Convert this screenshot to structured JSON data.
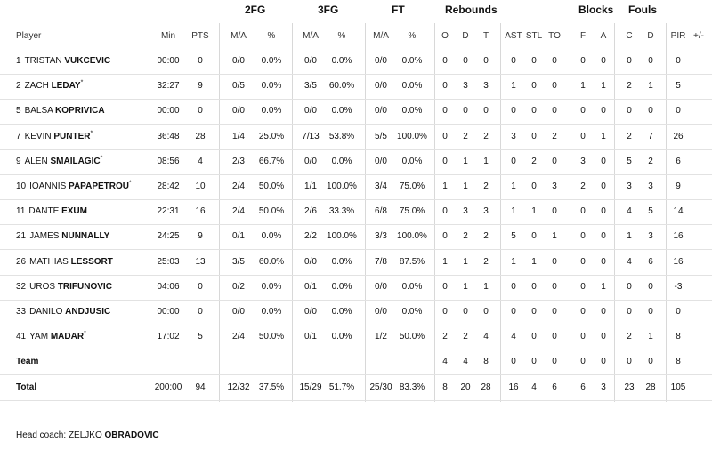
{
  "group_headers": {
    "fg2": "2FG",
    "fg3": "3FG",
    "ft": "FT",
    "rebounds": "Rebounds",
    "blocks": "Blocks",
    "fouls": "Fouls"
  },
  "columns": {
    "player": "Player",
    "min": "Min",
    "pts": "PTS",
    "fg2_ma": "M/A",
    "fg2_pct": "%",
    "fg3_ma": "M/A",
    "fg3_pct": "%",
    "ft_ma": "M/A",
    "ft_pct": "%",
    "reb_o": "O",
    "reb_d": "D",
    "reb_t": "T",
    "ast": "AST",
    "stl": "STL",
    "to": "TO",
    "blk_f": "F",
    "blk_a": "A",
    "foul_c": "C",
    "foul_d": "D",
    "pir": "PIR",
    "pm": "+/-"
  },
  "players": [
    {
      "num": "1",
      "first": "TRISTAN",
      "last": "VUKCEVIC",
      "starter": "",
      "min": "00:00",
      "pts": "0",
      "fg2_ma": "0/0",
      "fg2_pct": "0.0%",
      "fg3_ma": "0/0",
      "fg3_pct": "0.0%",
      "ft_ma": "0/0",
      "ft_pct": "0.0%",
      "reb_o": "0",
      "reb_d": "0",
      "reb_t": "0",
      "ast": "0",
      "stl": "0",
      "to": "0",
      "blk_f": "0",
      "blk_a": "0",
      "foul_c": "0",
      "foul_d": "0",
      "pir": "0",
      "pm": ""
    },
    {
      "num": "2",
      "first": "ZACH",
      "last": "LEDAY",
      "starter": "*",
      "min": "32:27",
      "pts": "9",
      "fg2_ma": "0/5",
      "fg2_pct": "0.0%",
      "fg3_ma": "3/5",
      "fg3_pct": "60.0%",
      "ft_ma": "0/0",
      "ft_pct": "0.0%",
      "reb_o": "0",
      "reb_d": "3",
      "reb_t": "3",
      "ast": "1",
      "stl": "0",
      "to": "0",
      "blk_f": "1",
      "blk_a": "1",
      "foul_c": "2",
      "foul_d": "1",
      "pir": "5",
      "pm": ""
    },
    {
      "num": "5",
      "first": "BALSA",
      "last": "KOPRIVICA",
      "starter": "",
      "min": "00:00",
      "pts": "0",
      "fg2_ma": "0/0",
      "fg2_pct": "0.0%",
      "fg3_ma": "0/0",
      "fg3_pct": "0.0%",
      "ft_ma": "0/0",
      "ft_pct": "0.0%",
      "reb_o": "0",
      "reb_d": "0",
      "reb_t": "0",
      "ast": "0",
      "stl": "0",
      "to": "0",
      "blk_f": "0",
      "blk_a": "0",
      "foul_c": "0",
      "foul_d": "0",
      "pir": "0",
      "pm": ""
    },
    {
      "num": "7",
      "first": "KEVIN",
      "last": "PUNTER",
      "starter": "*",
      "min": "36:48",
      "pts": "28",
      "fg2_ma": "1/4",
      "fg2_pct": "25.0%",
      "fg3_ma": "7/13",
      "fg3_pct": "53.8%",
      "ft_ma": "5/5",
      "ft_pct": "100.0%",
      "reb_o": "0",
      "reb_d": "2",
      "reb_t": "2",
      "ast": "3",
      "stl": "0",
      "to": "2",
      "blk_f": "0",
      "blk_a": "1",
      "foul_c": "2",
      "foul_d": "7",
      "pir": "26",
      "pm": ""
    },
    {
      "num": "9",
      "first": "ALEN",
      "last": "SMAILAGIC",
      "starter": "*",
      "min": "08:56",
      "pts": "4",
      "fg2_ma": "2/3",
      "fg2_pct": "66.7%",
      "fg3_ma": "0/0",
      "fg3_pct": "0.0%",
      "ft_ma": "0/0",
      "ft_pct": "0.0%",
      "reb_o": "0",
      "reb_d": "1",
      "reb_t": "1",
      "ast": "0",
      "stl": "2",
      "to": "0",
      "blk_f": "3",
      "blk_a": "0",
      "foul_c": "5",
      "foul_d": "2",
      "pir": "6",
      "pm": ""
    },
    {
      "num": "10",
      "first": "IOANNIS",
      "last": "PAPAPETROU",
      "starter": "*",
      "min": "28:42",
      "pts": "10",
      "fg2_ma": "2/4",
      "fg2_pct": "50.0%",
      "fg3_ma": "1/1",
      "fg3_pct": "100.0%",
      "ft_ma": "3/4",
      "ft_pct": "75.0%",
      "reb_o": "1",
      "reb_d": "1",
      "reb_t": "2",
      "ast": "1",
      "stl": "0",
      "to": "3",
      "blk_f": "2",
      "blk_a": "0",
      "foul_c": "3",
      "foul_d": "3",
      "pir": "9",
      "pm": ""
    },
    {
      "num": "11",
      "first": "DANTE",
      "last": "EXUM",
      "starter": "",
      "min": "22:31",
      "pts": "16",
      "fg2_ma": "2/4",
      "fg2_pct": "50.0%",
      "fg3_ma": "2/6",
      "fg3_pct": "33.3%",
      "ft_ma": "6/8",
      "ft_pct": "75.0%",
      "reb_o": "0",
      "reb_d": "3",
      "reb_t": "3",
      "ast": "1",
      "stl": "1",
      "to": "0",
      "blk_f": "0",
      "blk_a": "0",
      "foul_c": "4",
      "foul_d": "5",
      "pir": "14",
      "pm": ""
    },
    {
      "num": "21",
      "first": "JAMES",
      "last": "NUNNALLY",
      "starter": "",
      "min": "24:25",
      "pts": "9",
      "fg2_ma": "0/1",
      "fg2_pct": "0.0%",
      "fg3_ma": "2/2",
      "fg3_pct": "100.0%",
      "ft_ma": "3/3",
      "ft_pct": "100.0%",
      "reb_o": "0",
      "reb_d": "2",
      "reb_t": "2",
      "ast": "5",
      "stl": "0",
      "to": "1",
      "blk_f": "0",
      "blk_a": "0",
      "foul_c": "1",
      "foul_d": "3",
      "pir": "16",
      "pm": ""
    },
    {
      "num": "26",
      "first": "MATHIAS",
      "last": "LESSORT",
      "starter": "",
      "min": "25:03",
      "pts": "13",
      "fg2_ma": "3/5",
      "fg2_pct": "60.0%",
      "fg3_ma": "0/0",
      "fg3_pct": "0.0%",
      "ft_ma": "7/8",
      "ft_pct": "87.5%",
      "reb_o": "1",
      "reb_d": "1",
      "reb_t": "2",
      "ast": "1",
      "stl": "1",
      "to": "0",
      "blk_f": "0",
      "blk_a": "0",
      "foul_c": "4",
      "foul_d": "6",
      "pir": "16",
      "pm": ""
    },
    {
      "num": "32",
      "first": "UROS",
      "last": "TRIFUNOVIC",
      "starter": "",
      "min": "04:06",
      "pts": "0",
      "fg2_ma": "0/2",
      "fg2_pct": "0.0%",
      "fg3_ma": "0/1",
      "fg3_pct": "0.0%",
      "ft_ma": "0/0",
      "ft_pct": "0.0%",
      "reb_o": "0",
      "reb_d": "1",
      "reb_t": "1",
      "ast": "0",
      "stl": "0",
      "to": "0",
      "blk_f": "0",
      "blk_a": "1",
      "foul_c": "0",
      "foul_d": "0",
      "pir": "-3",
      "pm": ""
    },
    {
      "num": "33",
      "first": "DANILO",
      "last": "ANDJUSIC",
      "starter": "",
      "min": "00:00",
      "pts": "0",
      "fg2_ma": "0/0",
      "fg2_pct": "0.0%",
      "fg3_ma": "0/0",
      "fg3_pct": "0.0%",
      "ft_ma": "0/0",
      "ft_pct": "0.0%",
      "reb_o": "0",
      "reb_d": "0",
      "reb_t": "0",
      "ast": "0",
      "stl": "0",
      "to": "0",
      "blk_f": "0",
      "blk_a": "0",
      "foul_c": "0",
      "foul_d": "0",
      "pir": "0",
      "pm": ""
    },
    {
      "num": "41",
      "first": "YAM",
      "last": "MADAR",
      "starter": "*",
      "min": "17:02",
      "pts": "5",
      "fg2_ma": "2/4",
      "fg2_pct": "50.0%",
      "fg3_ma": "0/1",
      "fg3_pct": "0.0%",
      "ft_ma": "1/2",
      "ft_pct": "50.0%",
      "reb_o": "2",
      "reb_d": "2",
      "reb_t": "4",
      "ast": "4",
      "stl": "0",
      "to": "0",
      "blk_f": "0",
      "blk_a": "0",
      "foul_c": "2",
      "foul_d": "1",
      "pir": "8",
      "pm": ""
    }
  ],
  "team": {
    "label": "Team",
    "min": "",
    "pts": "",
    "fg2_ma": "",
    "fg2_pct": "",
    "fg3_ma": "",
    "fg3_pct": "",
    "ft_ma": "",
    "ft_pct": "",
    "reb_o": "4",
    "reb_d": "4",
    "reb_t": "8",
    "ast": "0",
    "stl": "0",
    "to": "0",
    "blk_f": "0",
    "blk_a": "0",
    "foul_c": "0",
    "foul_d": "0",
    "pir": "8",
    "pm": ""
  },
  "total": {
    "label": "Total",
    "min": "200:00",
    "pts": "94",
    "fg2_ma": "12/32",
    "fg2_pct": "37.5%",
    "fg3_ma": "15/29",
    "fg3_pct": "51.7%",
    "ft_ma": "25/30",
    "ft_pct": "83.3%",
    "reb_o": "8",
    "reb_d": "20",
    "reb_t": "28",
    "ast": "16",
    "stl": "4",
    "to": "6",
    "blk_f": "6",
    "blk_a": "3",
    "foul_c": "23",
    "foul_d": "28",
    "pir": "105",
    "pm": ""
  },
  "coach": {
    "label": "Head coach:",
    "first": "ZELJKO",
    "last": "OBRADOVIC"
  }
}
